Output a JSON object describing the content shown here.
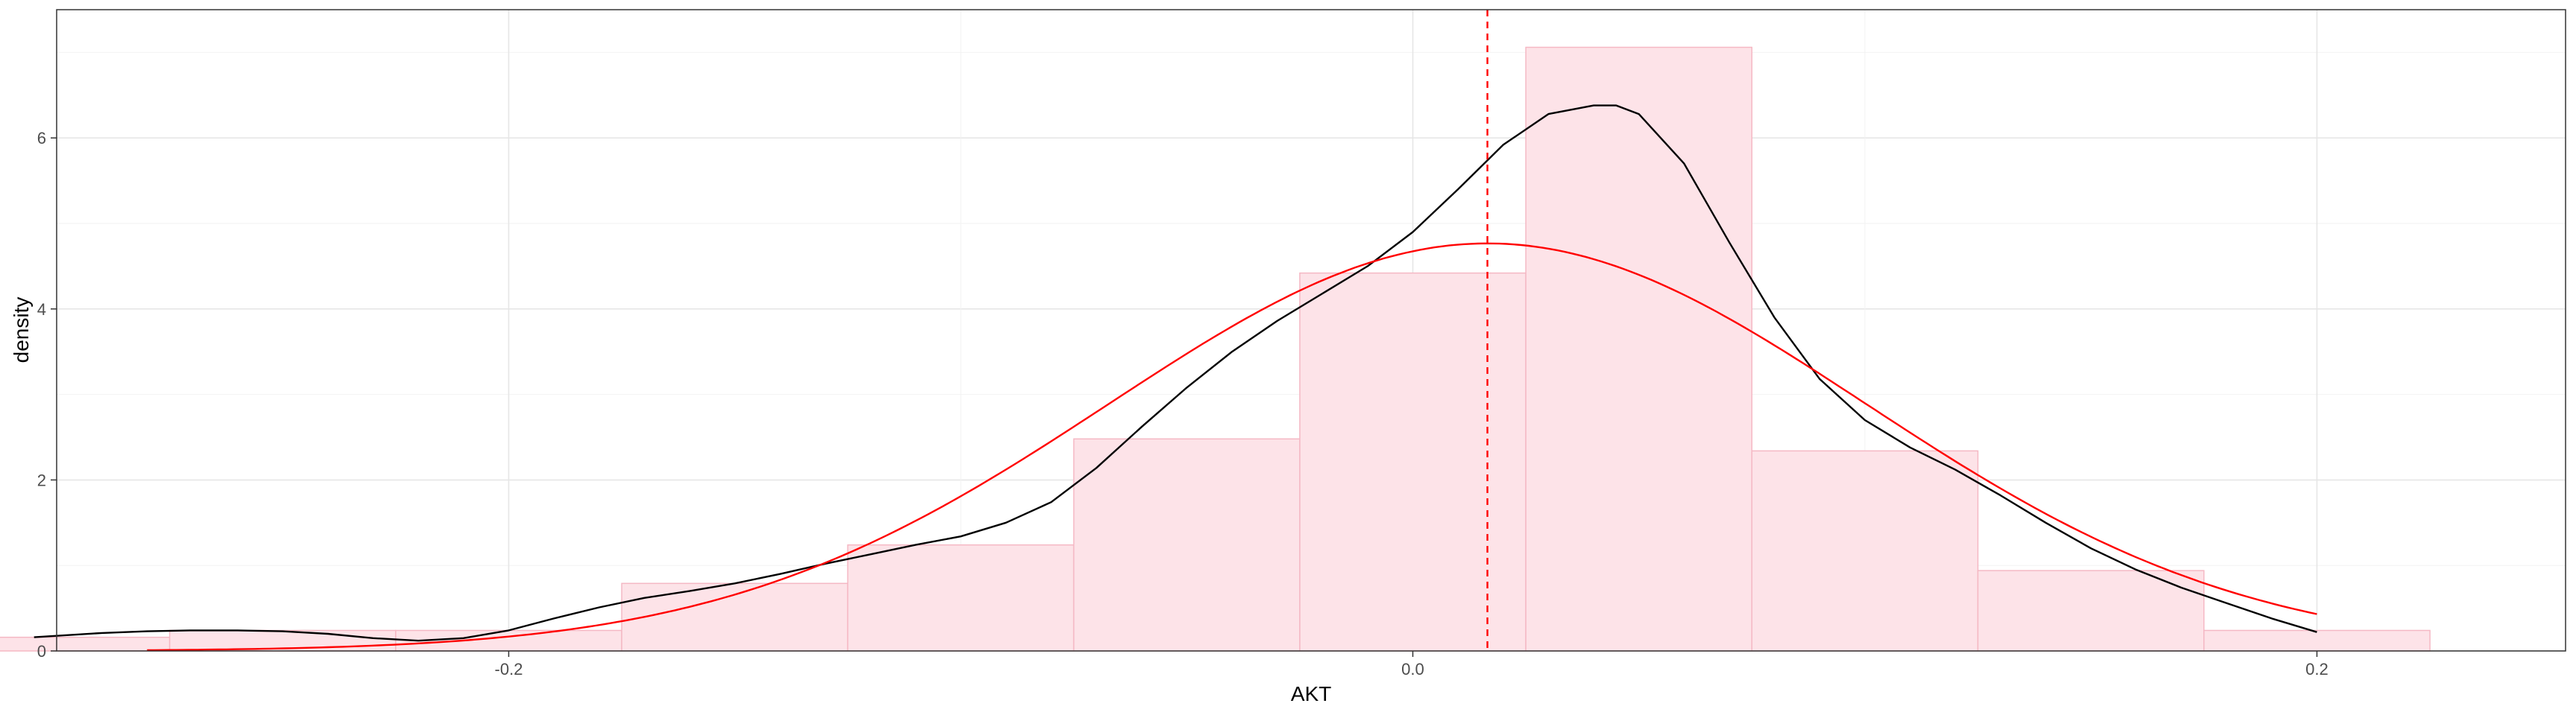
{
  "chart_data": {
    "type": "bar",
    "xlabel": "AKT",
    "ylabel": "density",
    "xlim": [
      -0.3,
      0.255
    ],
    "ylim": [
      0,
      7.5
    ],
    "x_ticks": [
      -0.2,
      0.0,
      0.2
    ],
    "x_tick_labels": [
      "-0.2",
      "0.0",
      "0.2"
    ],
    "y_ticks": [
      0,
      2,
      4,
      6
    ],
    "y_tick_labels": [
      "0",
      "2",
      "4",
      "6"
    ],
    "grid": true,
    "histogram": {
      "fill": "#fde3e8",
      "stroke": "#f5b8c4",
      "bins": [
        {
          "x0": -0.325,
          "x1": -0.275,
          "density": 0.16
        },
        {
          "x0": -0.275,
          "x1": -0.225,
          "density": 0.24
        },
        {
          "x0": -0.225,
          "x1": -0.175,
          "density": 0.24
        },
        {
          "x0": -0.175,
          "x1": -0.125,
          "density": 0.79
        },
        {
          "x0": -0.125,
          "x1": -0.075,
          "density": 1.24
        },
        {
          "x0": -0.075,
          "x1": -0.025,
          "density": 2.48
        },
        {
          "x0": -0.025,
          "x1": 0.025,
          "density": 4.42
        },
        {
          "x0": 0.025,
          "x1": 0.075,
          "density": 7.06
        },
        {
          "x0": 0.075,
          "x1": 0.125,
          "density": 2.34
        },
        {
          "x0": 0.125,
          "x1": 0.175,
          "density": 0.94
        },
        {
          "x0": 0.175,
          "x1": 0.225,
          "density": 0.24
        }
      ]
    },
    "kde_curve": {
      "color": "#000000",
      "x": [
        -0.305,
        -0.29,
        -0.28,
        -0.27,
        -0.26,
        -0.25,
        -0.24,
        -0.23,
        -0.22,
        -0.21,
        -0.2,
        -0.19,
        -0.18,
        -0.17,
        -0.16,
        -0.15,
        -0.14,
        -0.13,
        -0.12,
        -0.11,
        -0.1,
        -0.09,
        -0.08,
        -0.07,
        -0.06,
        -0.05,
        -0.04,
        -0.03,
        -0.02,
        -0.01,
        0.0,
        0.01,
        0.02,
        0.03,
        0.04,
        0.045,
        0.05,
        0.06,
        0.07,
        0.08,
        0.09,
        0.1,
        0.11,
        0.12,
        0.13,
        0.14,
        0.15,
        0.16,
        0.17,
        0.18,
        0.19,
        0.2
      ],
      "y": [
        0.16,
        0.21,
        0.23,
        0.24,
        0.24,
        0.23,
        0.2,
        0.15,
        0.12,
        0.15,
        0.24,
        0.38,
        0.51,
        0.62,
        0.7,
        0.79,
        0.9,
        1.02,
        1.13,
        1.24,
        1.34,
        1.5,
        1.74,
        2.14,
        2.62,
        3.08,
        3.5,
        3.86,
        4.18,
        4.5,
        4.9,
        5.4,
        5.92,
        6.28,
        6.38,
        6.38,
        6.28,
        5.7,
        4.78,
        3.9,
        3.18,
        2.7,
        2.38,
        2.12,
        1.82,
        1.5,
        1.2,
        0.95,
        0.74,
        0.56,
        0.38,
        0.22
      ]
    },
    "normal_curve": {
      "color": "#ff0000",
      "mean": 0.0165,
      "sd": 0.0837,
      "x_range": [
        -0.28,
        0.2
      ]
    },
    "mean_line": {
      "x": 0.0165,
      "color": "#ff0000",
      "style": "dashed"
    }
  }
}
